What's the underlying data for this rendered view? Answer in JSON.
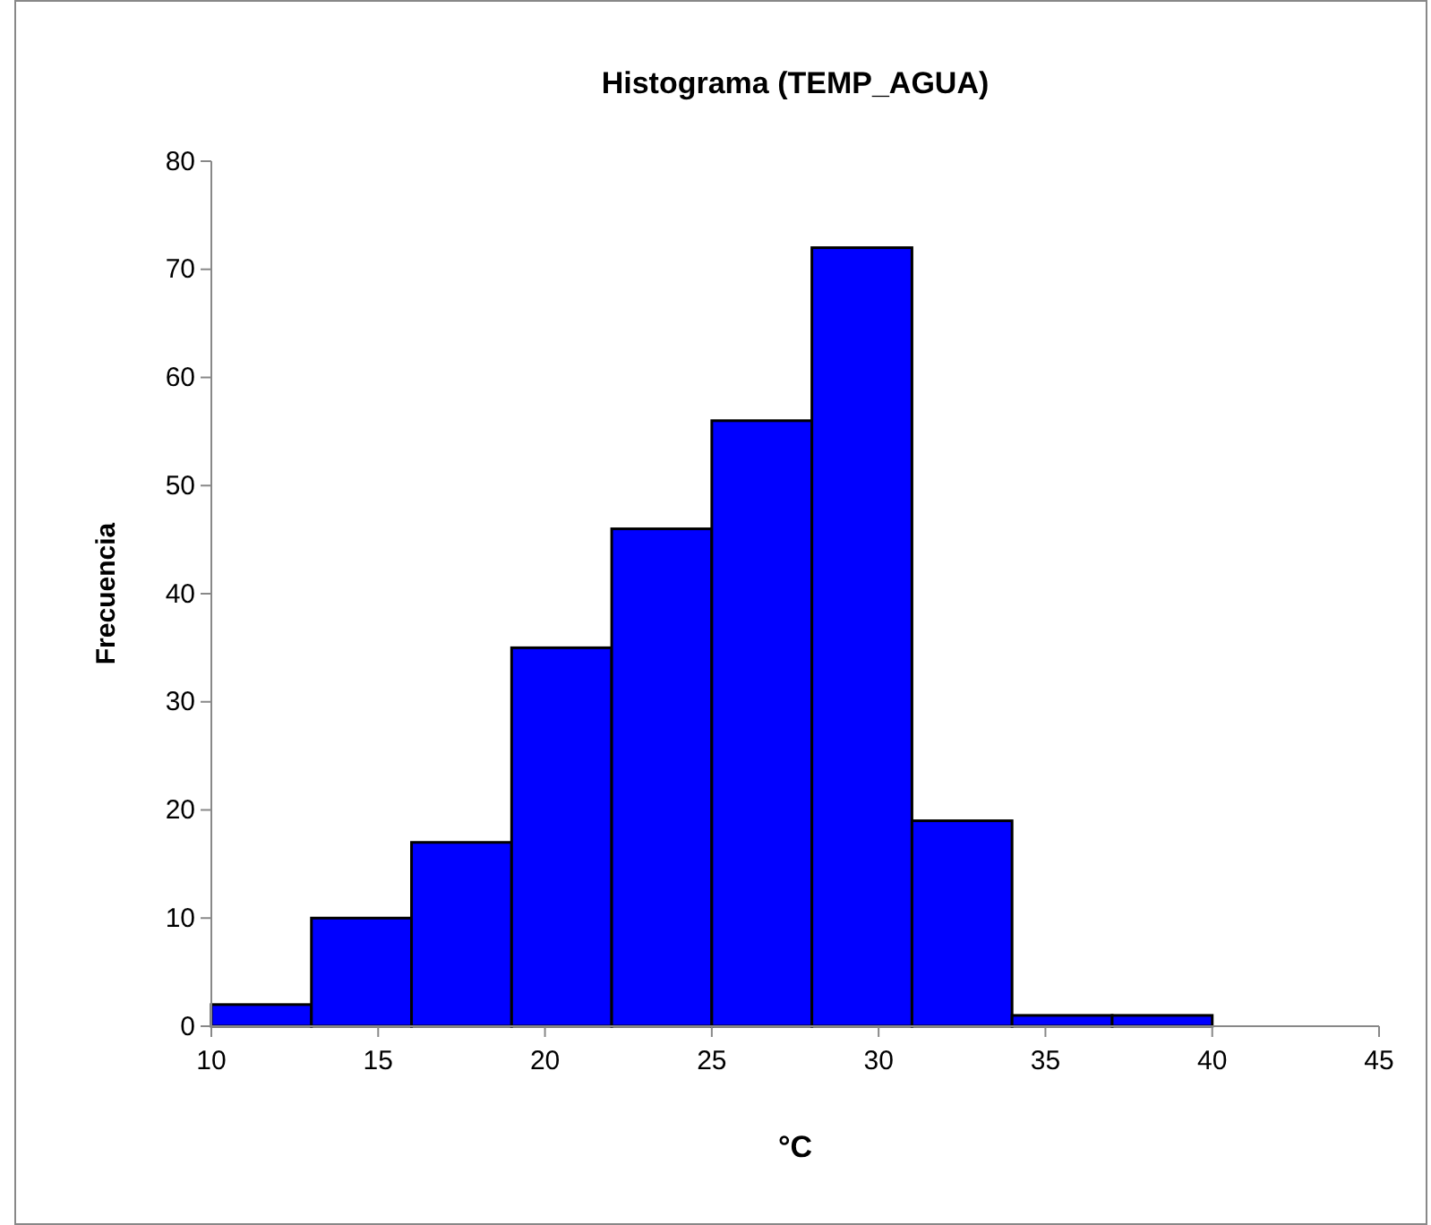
{
  "chart_data": {
    "type": "histogram",
    "title": "Histograma (TEMP_AGUA)",
    "xlabel": "°C",
    "ylabel": "Frecuencia",
    "bins": [
      10,
      13,
      16,
      19,
      22,
      25,
      28,
      31,
      34,
      37,
      40
    ],
    "values": [
      2,
      10,
      17,
      35,
      46,
      56,
      72,
      19,
      1,
      1
    ],
    "color": "#0000ff",
    "xlim": [
      10,
      45
    ],
    "xticks": [
      10,
      15,
      20,
      25,
      30,
      35,
      40,
      45
    ],
    "ylim": [
      0,
      80
    ],
    "yticks": [
      0,
      10,
      20,
      30,
      40,
      50,
      60,
      70,
      80
    ],
    "grid": false
  }
}
